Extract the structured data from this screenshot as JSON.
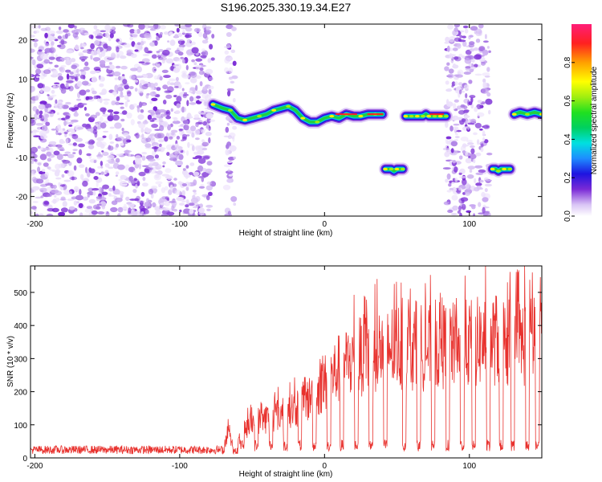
{
  "title": "S196.2025.330.19.34.E27",
  "colors": {
    "line": "#e8312d",
    "scatter_low": "#c8a8f0",
    "scatter_high": "#7a2ad6",
    "frame": "#000000"
  },
  "chart_data": [
    {
      "type": "heatmap",
      "name": "spectrogram",
      "xlabel": "Height of straight line (km)",
      "ylabel": "Frequency (Hz)",
      "xlim": [
        -203,
        150
      ],
      "ylim": [
        -25,
        24
      ],
      "xticks": [
        -200,
        -100,
        0,
        100
      ],
      "yticks": [
        -20,
        -10,
        0,
        10,
        20
      ],
      "colorbar": {
        "label": "Normalized spectral amplitude",
        "range": [
          0,
          1
        ],
        "ticks": [
          "0.0",
          "0.2",
          "0.4",
          "0.6",
          "0.8"
        ],
        "tick_values": [
          0.0,
          0.2,
          0.4,
          0.6,
          0.8
        ]
      },
      "noise_regions": [
        [
          -203,
          -77
        ],
        [
          -68,
          -62
        ],
        [
          84,
          114
        ]
      ],
      "tracks": [
        {
          "x": [
            -77,
            -70,
            -65,
            -60,
            -55,
            -50,
            -45,
            -40,
            -35,
            -30,
            -25,
            -20,
            -15,
            -10,
            -5,
            0,
            5,
            10,
            15,
            20,
            25,
            30,
            35,
            40
          ],
          "y": [
            3.5,
            2.5,
            2,
            0,
            -0.5,
            0,
            0.5,
            1,
            2,
            2.5,
            3,
            2,
            0,
            -1,
            -1,
            0,
            0.5,
            0,
            1,
            0.5,
            0.5,
            1,
            1,
            1
          ]
        },
        {
          "x": [
            42,
            44,
            46,
            48,
            50,
            52,
            54
          ],
          "y": [
            -13,
            -13,
            -13,
            -13.5,
            -13,
            -13,
            -13
          ]
        },
        {
          "x": [
            56,
            58,
            60,
            62,
            64,
            66,
            68,
            70,
            72,
            74,
            76,
            78,
            80,
            82,
            84
          ],
          "y": [
            0.5,
            0.5,
            0.5,
            0.5,
            0.5,
            0.5,
            0.5,
            1,
            0.5,
            0.5,
            0.5,
            0.5,
            0.5,
            0.5,
            0.5
          ]
        },
        {
          "x": [
            116,
            118,
            120,
            122,
            124,
            126,
            128
          ],
          "y": [
            -13,
            -13,
            -13.5,
            -13,
            -13,
            -13,
            -13
          ]
        },
        {
          "x": [
            131,
            135,
            140,
            145,
            150
          ],
          "y": [
            1,
            1.5,
            1,
            1.5,
            1
          ]
        }
      ]
    },
    {
      "type": "line",
      "name": "snr",
      "xlabel": "Height of straight line (km)",
      "ylabel": "SNR (10 * v/v)",
      "xlim": [
        -203,
        150
      ],
      "ylim": [
        0,
        580
      ],
      "xticks": [
        -200,
        -100,
        0,
        100
      ],
      "yticks": [
        0,
        100,
        200,
        300,
        400,
        500
      ],
      "envelope": {
        "x": [
          -203,
          -80,
          -75,
          -70,
          -67,
          -62,
          -55,
          -50,
          -40,
          -30,
          -20,
          -10,
          0,
          10,
          20,
          30,
          40,
          50,
          60,
          70,
          80,
          90,
          100,
          110,
          120,
          130,
          140,
          150
        ],
        "y": [
          25,
          25,
          30,
          40,
          100,
          40,
          110,
          140,
          160,
          180,
          200,
          240,
          300,
          360,
          400,
          420,
          440,
          450,
          450,
          440,
          450,
          450,
          460,
          470,
          480,
          460,
          470,
          470
        ]
      },
      "drops": [
        -57,
        -47,
        -37,
        -27,
        -17,
        -7,
        3,
        12,
        22,
        32,
        42,
        55,
        65,
        75,
        85,
        95,
        103,
        113,
        122,
        130,
        140,
        147
      ],
      "drop_level": 20,
      "noise_amplitude": 25
    }
  ]
}
